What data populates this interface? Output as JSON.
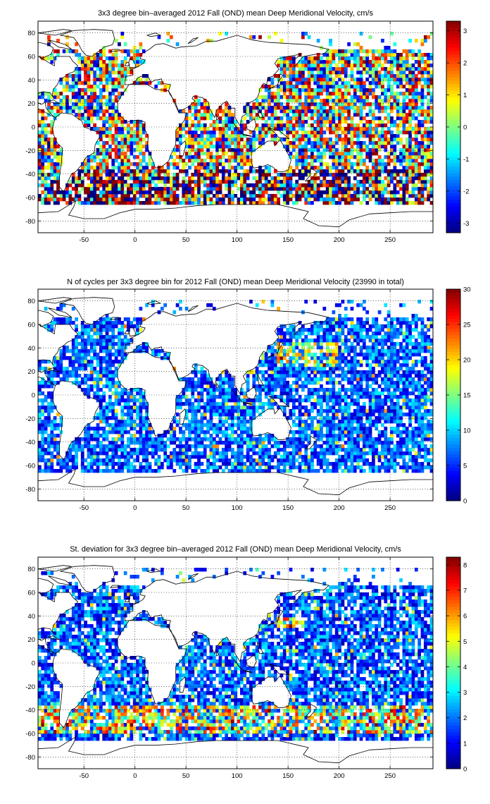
{
  "chart_data": [
    {
      "type": "heatmap",
      "title": "3x3 degree bin–averaged 2012 Fall (OND) mean Deep Meridional Velocity, cm/s",
      "xlim": [
        -95,
        292
      ],
      "ylim": [
        -90,
        90
      ],
      "xticks": [
        -50,
        0,
        50,
        100,
        150,
        200,
        250
      ],
      "yticks": [
        80,
        60,
        40,
        20,
        0,
        -20,
        -40,
        -60,
        -80
      ],
      "grid": true,
      "bin_size_deg": 3,
      "colormap": "jet",
      "clim": [
        -3.3,
        3.3
      ],
      "colorbar_ticks": [
        3,
        2,
        1,
        0,
        -1,
        -2,
        -3
      ]
    },
    {
      "type": "heatmap",
      "title": "N of cycles per 3x3 degree bin for 2012 Fall (OND) mean Deep Meridional Velocity (23990 in total)",
      "xlim": [
        -95,
        292
      ],
      "ylim": [
        -90,
        90
      ],
      "xticks": [
        -50,
        0,
        50,
        100,
        150,
        200,
        250
      ],
      "yticks": [
        80,
        60,
        40,
        20,
        0,
        -20,
        -40,
        -60,
        -80
      ],
      "grid": true,
      "bin_size_deg": 3,
      "colormap": "jet",
      "clim": [
        0,
        30
      ],
      "colorbar_ticks": [
        30,
        25,
        20,
        15,
        10,
        5,
        0
      ]
    },
    {
      "type": "heatmap",
      "title": "St. deviation for 3x3 degree bin–averaged 2012 Fall (OND) mean Deep Meridional Velocity, cm/s",
      "xlim": [
        -95,
        292
      ],
      "ylim": [
        -90,
        90
      ],
      "xticks": [
        -50,
        0,
        50,
        100,
        150,
        200,
        250
      ],
      "yticks": [
        80,
        60,
        40,
        20,
        0,
        -20,
        -40,
        -60,
        -80
      ],
      "grid": true,
      "bin_size_deg": 3,
      "colormap": "jet",
      "clim": [
        0,
        8.3
      ],
      "colorbar_ticks": [
        8,
        7,
        6,
        5,
        4,
        3,
        2,
        1,
        0
      ]
    }
  ]
}
